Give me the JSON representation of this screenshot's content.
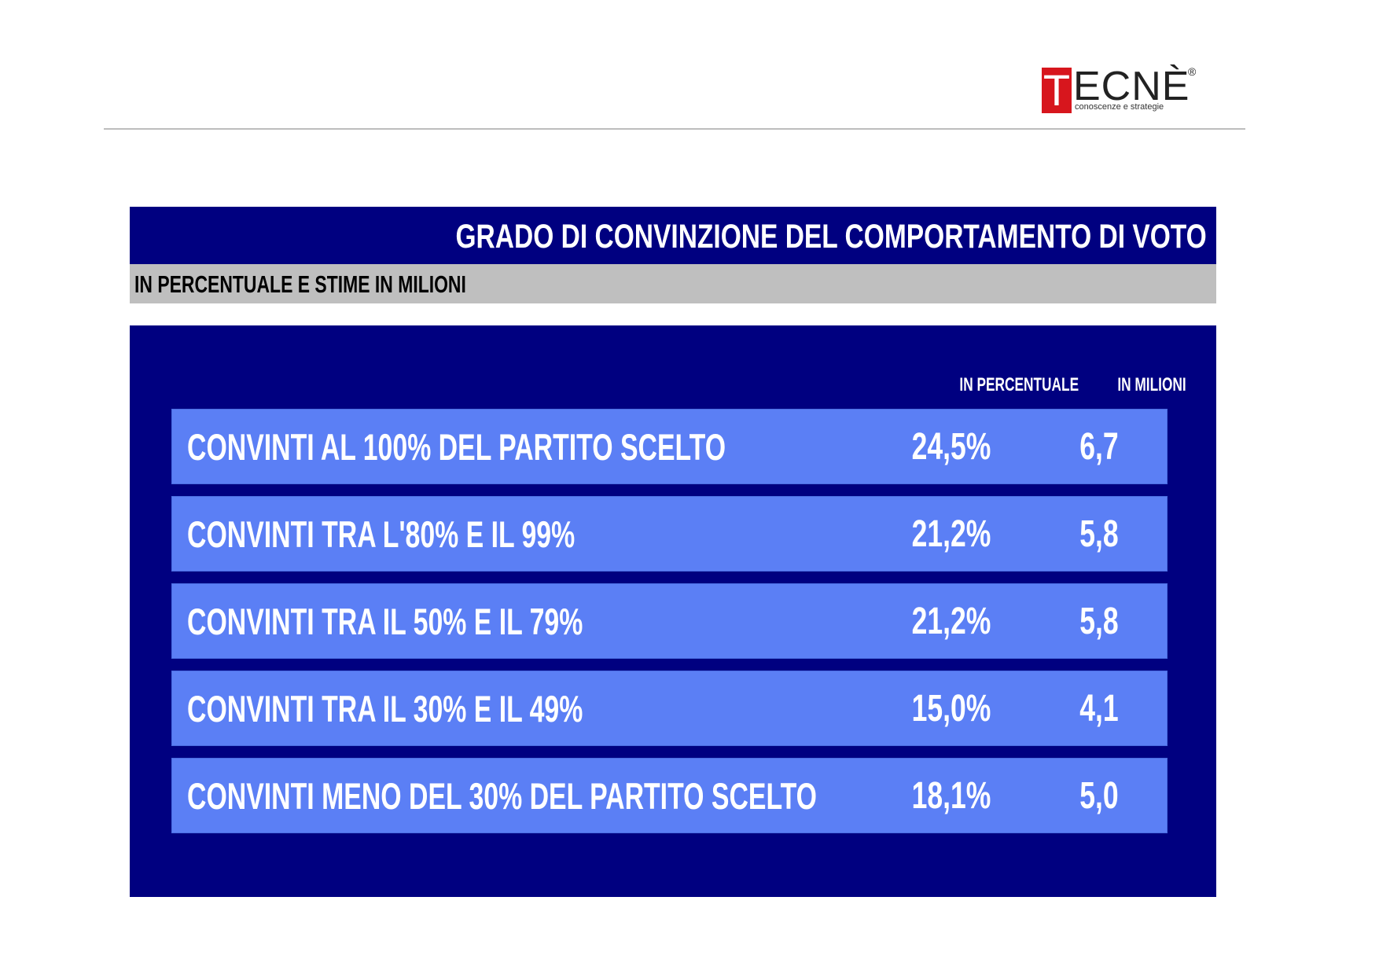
{
  "logo": {
    "initial": "T",
    "rest": "ECNÈ",
    "registered": "®",
    "tagline": "conoscenze e strategie",
    "brand_color": "#d7161d"
  },
  "header": {
    "title": "GRADO DI CONVINZIONE DEL COMPORTAMENTO DI VOTO",
    "subtitle": "IN PERCENTUALE E STIME IN MILIONI"
  },
  "colors": {
    "title_bar": "#000080",
    "subtitle_bar": "#bfbfbf",
    "panel": "#000080",
    "row": "#5b7ff5"
  },
  "chart_data": {
    "type": "table",
    "title": "GRADO DI CONVINZIONE DEL COMPORTAMENTO DI VOTO",
    "subtitle": "IN PERCENTUALE E STIME IN MILIONI",
    "columns": [
      "",
      "IN PERCENTUALE",
      "IN MILIONI"
    ],
    "rows": [
      {
        "label": "CONVINTI AL 100% DEL PARTITO SCELTO",
        "percent": "24,5%",
        "millions": "6,7"
      },
      {
        "label": "CONVINTI TRA L'80% E IL 99%",
        "percent": "21,2%",
        "millions": "5,8"
      },
      {
        "label": "CONVINTI TRA IL 50% E IL 79%",
        "percent": "21,2%",
        "millions": "5,8"
      },
      {
        "label": "CONVINTI TRA IL 30% E IL 49%",
        "percent": "15,0%",
        "millions": "4,1"
      },
      {
        "label": "CONVINTI MENO DEL 30%  DEL PARTITO SCELTO",
        "percent": "18,1%",
        "millions": "5,0"
      }
    ]
  }
}
